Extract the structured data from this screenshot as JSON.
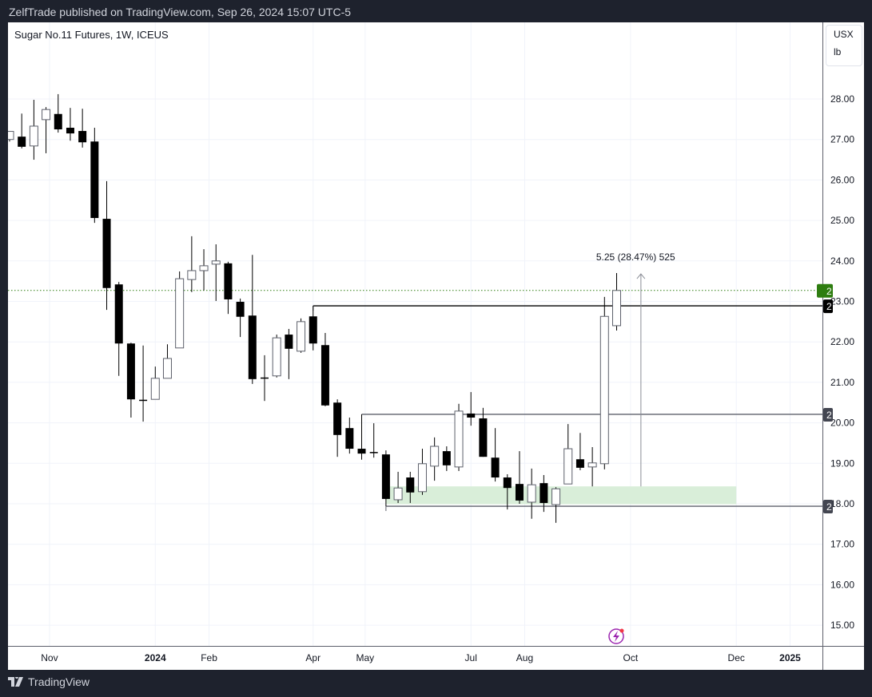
{
  "header": {
    "published": "ZelfTrade published on TradingView.com, Sep 26, 2024 15:07 UTC-5"
  },
  "symbol": {
    "title": "Sugar No.11 Futures, 1W, ICEUS"
  },
  "units": {
    "currency": "USX",
    "unit": "lb"
  },
  "footer": {
    "brand": "TradingView"
  },
  "chart_data": {
    "type": "candlestick",
    "interval": "1W",
    "ylim": [
      14.5,
      29
    ],
    "y_ticks": [
      "28.00",
      "27.00",
      "26.00",
      "25.00",
      "24.00",
      "23.00",
      "22.00",
      "21.00",
      "20.00",
      "19.00",
      "18.00",
      "17.00",
      "16.00",
      "15.00"
    ],
    "x_ticks": [
      [
        "2023-11-01",
        "Nov"
      ],
      [
        "2024-01-01",
        "2024"
      ],
      [
        "2024-02-01",
        "Feb"
      ],
      [
        "2024-04-01",
        "Apr"
      ],
      [
        "2024-05-01",
        "May"
      ],
      [
        "2024-07-01",
        "Jul"
      ],
      [
        "2024-08-01",
        "Aug"
      ],
      [
        "2024-10-01",
        "Oct"
      ],
      [
        "2024-12-01",
        "Dec"
      ],
      [
        "2025-01-01",
        "2025"
      ]
    ],
    "grid": true,
    "colors": {
      "up": "#ffffff",
      "down": "#000000",
      "outline": "#5d606b",
      "last_price": "#2e7d10",
      "zone": "#d9eed9"
    },
    "candles_start": "2023-10-09",
    "candles": [
      [
        27.0,
        27.2,
        26.95,
        27.2
      ],
      [
        27.07,
        27.64,
        26.78,
        26.82
      ],
      [
        26.84,
        27.98,
        26.5,
        27.33
      ],
      [
        27.49,
        27.8,
        26.66,
        27.74
      ],
      [
        27.63,
        28.12,
        27.17,
        27.25
      ],
      [
        27.29,
        27.78,
        26.97,
        27.15
      ],
      [
        27.21,
        27.76,
        26.8,
        26.93
      ],
      [
        26.95,
        27.29,
        24.94,
        25.06
      ],
      [
        25.04,
        25.97,
        22.79,
        23.33
      ],
      [
        23.42,
        23.48,
        21.16,
        21.96
      ],
      [
        21.96,
        21.98,
        20.13,
        20.58
      ],
      [
        20.57,
        21.91,
        20.03,
        20.55
      ],
      [
        20.58,
        21.39,
        20.58,
        21.1
      ],
      [
        21.1,
        21.94,
        21.1,
        21.59
      ],
      [
        21.85,
        23.74,
        21.85,
        23.56
      ],
      [
        23.54,
        24.61,
        23.23,
        23.76
      ],
      [
        23.76,
        24.29,
        23.27,
        23.88
      ],
      [
        23.92,
        24.41,
        23.01,
        24.0
      ],
      [
        23.94,
        23.98,
        22.69,
        23.05
      ],
      [
        22.99,
        23.07,
        22.12,
        22.62
      ],
      [
        22.65,
        24.15,
        20.96,
        21.08
      ],
      [
        21.12,
        21.67,
        20.54,
        21.1
      ],
      [
        21.16,
        22.18,
        21.12,
        22.1
      ],
      [
        22.18,
        22.32,
        21.08,
        21.83
      ],
      [
        21.77,
        22.58,
        21.73,
        22.5
      ],
      [
        22.63,
        22.89,
        21.79,
        21.96
      ],
      [
        21.92,
        22.22,
        20.41,
        20.43
      ],
      [
        20.5,
        20.58,
        19.16,
        19.7
      ],
      [
        19.87,
        20.13,
        19.24,
        19.36
      ],
      [
        19.36,
        20.21,
        19.09,
        19.24
      ],
      [
        19.28,
        19.99,
        19.14,
        19.27
      ],
      [
        19.22,
        19.32,
        17.94,
        18.12
      ],
      [
        18.1,
        18.79,
        18.02,
        18.39
      ],
      [
        18.65,
        18.79,
        18.02,
        18.28
      ],
      [
        18.3,
        19.36,
        18.22,
        18.99
      ],
      [
        18.93,
        19.64,
        18.57,
        19.42
      ],
      [
        19.3,
        19.42,
        18.81,
        18.95
      ],
      [
        18.91,
        20.47,
        18.81,
        20.29
      ],
      [
        20.23,
        20.76,
        19.93,
        20.13
      ],
      [
        20.11,
        20.37,
        19.16,
        19.16
      ],
      [
        19.14,
        19.87,
        18.55,
        18.65
      ],
      [
        18.65,
        18.73,
        17.86,
        18.39
      ],
      [
        18.49,
        19.3,
        18.0,
        18.08
      ],
      [
        18.04,
        18.87,
        17.63,
        18.47
      ],
      [
        18.51,
        18.71,
        17.8,
        18.02
      ],
      [
        17.98,
        18.41,
        17.53,
        18.37
      ],
      [
        18.49,
        19.97,
        18.49,
        19.36
      ],
      [
        19.1,
        19.75,
        18.83,
        18.89
      ],
      [
        18.91,
        19.4,
        18.43,
        19.01
      ],
      [
        18.99,
        23.11,
        18.85,
        22.63
      ],
      [
        22.4,
        23.7,
        22.28,
        23.27
      ]
    ],
    "last_price": 23.27,
    "horizontal_lines": [
      {
        "price": 22.89,
        "from": "2024-04-01"
      },
      {
        "price": 20.21,
        "from": "2024-04-29"
      },
      {
        "price": 17.94,
        "from": "2024-05-13"
      }
    ],
    "zone": {
      "from": "2024-05-13",
      "to": "2024-12-01",
      "top": 18.43,
      "bottom": 17.99
    },
    "measure": {
      "date": "2024-10-07",
      "from": 18.43,
      "to": 23.68,
      "label": "5.25 (28.47%) 525"
    }
  }
}
